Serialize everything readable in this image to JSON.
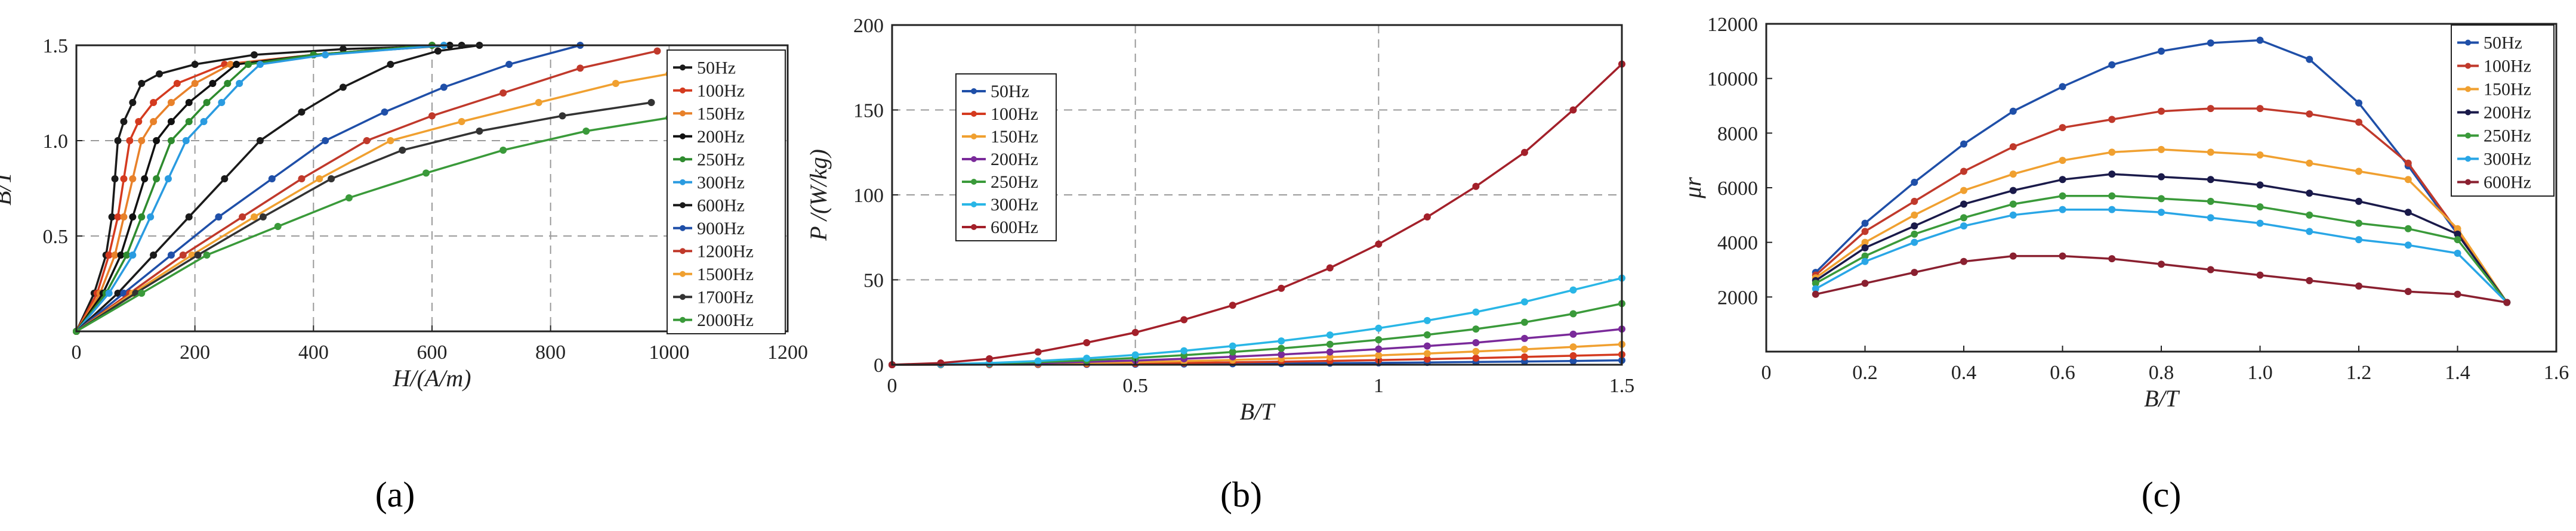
{
  "chart_data": [
    {
      "type": "line",
      "xlabel": "H/(A/m)",
      "ylabel": "B/T",
      "xlim": [
        0,
        1200
      ],
      "ylim": [
        0,
        1.5
      ],
      "xticks": [
        "0",
        "200",
        "400",
        "600",
        "800",
        "1000",
        "1200"
      ],
      "yticks": [
        "0.5",
        "1.0",
        "1.5"
      ],
      "grid": true,
      "legend_position": "right",
      "caption": "(a)",
      "series": [
        {
          "name": "50Hz",
          "color": "#1a1a1a",
          "x": [
            0,
            30,
            50,
            60,
            65,
            70,
            80,
            95,
            110,
            140,
            200,
            300,
            450,
            650
          ],
          "y": [
            0,
            0.2,
            0.4,
            0.6,
            0.8,
            1.0,
            1.1,
            1.2,
            1.3,
            1.35,
            1.4,
            1.45,
            1.48,
            1.5
          ]
        },
        {
          "name": "100Hz",
          "color": "#d43a1f",
          "x": [
            0,
            35,
            55,
            70,
            80,
            90,
            105,
            130,
            170,
            250,
            400,
            600
          ],
          "y": [
            0,
            0.2,
            0.4,
            0.6,
            0.8,
            1.0,
            1.1,
            1.2,
            1.3,
            1.4,
            1.45,
            1.5
          ]
        },
        {
          "name": "150Hz",
          "color": "#e8812a",
          "x": [
            0,
            40,
            65,
            80,
            95,
            110,
            130,
            160,
            200,
            260,
            400,
            600
          ],
          "y": [
            0,
            0.2,
            0.4,
            0.6,
            0.8,
            1.0,
            1.1,
            1.2,
            1.3,
            1.4,
            1.45,
            1.5
          ]
        },
        {
          "name": "200Hz",
          "color": "#111111",
          "x": [
            0,
            45,
            75,
            95,
            115,
            135,
            160,
            190,
            230,
            270,
            400,
            630
          ],
          "y": [
            0,
            0.2,
            0.4,
            0.6,
            0.8,
            1.0,
            1.1,
            1.2,
            1.3,
            1.4,
            1.45,
            1.5
          ]
        },
        {
          "name": "250Hz",
          "color": "#2e8b2e",
          "x": [
            0,
            50,
            85,
            110,
            135,
            160,
            190,
            220,
            255,
            290,
            400,
            600
          ],
          "y": [
            0,
            0.2,
            0.4,
            0.6,
            0.8,
            1.0,
            1.1,
            1.2,
            1.3,
            1.4,
            1.45,
            1.5
          ]
        },
        {
          "name": "300Hz",
          "color": "#2a9be0",
          "x": [
            0,
            55,
            95,
            125,
            155,
            185,
            215,
            245,
            275,
            310,
            420,
            620
          ],
          "y": [
            0,
            0.2,
            0.4,
            0.6,
            0.8,
            1.0,
            1.1,
            1.2,
            1.3,
            1.4,
            1.45,
            1.5
          ]
        },
        {
          "name": "600Hz",
          "color": "#1a1a1a",
          "x": [
            0,
            70,
            130,
            190,
            250,
            310,
            380,
            450,
            530,
            610,
            680
          ],
          "y": [
            0,
            0.2,
            0.4,
            0.6,
            0.8,
            1.0,
            1.15,
            1.28,
            1.4,
            1.47,
            1.5
          ]
        },
        {
          "name": "900Hz",
          "color": "#1f4fa8",
          "x": [
            0,
            80,
            160,
            240,
            330,
            420,
            520,
            620,
            730,
            850
          ],
          "y": [
            0,
            0.2,
            0.4,
            0.6,
            0.8,
            1.0,
            1.15,
            1.28,
            1.4,
            1.5
          ]
        },
        {
          "name": "1200Hz",
          "color": "#c0392b",
          "x": [
            0,
            90,
            180,
            280,
            380,
            490,
            600,
            720,
            850,
            980
          ],
          "y": [
            0,
            0.2,
            0.4,
            0.6,
            0.8,
            1.0,
            1.13,
            1.25,
            1.38,
            1.47
          ]
        },
        {
          "name": "1500Hz",
          "color": "#f0a030",
          "x": [
            0,
            95,
            195,
            300,
            410,
            530,
            650,
            780,
            910,
            1000
          ],
          "y": [
            0,
            0.2,
            0.4,
            0.6,
            0.8,
            1.0,
            1.1,
            1.2,
            1.3,
            1.35
          ]
        },
        {
          "name": "1700Hz",
          "color": "#333333",
          "x": [
            0,
            100,
            205,
            315,
            430,
            550,
            680,
            820,
            970
          ],
          "y": [
            0,
            0.2,
            0.4,
            0.6,
            0.8,
            0.95,
            1.05,
            1.13,
            1.2
          ]
        },
        {
          "name": "2000Hz",
          "color": "#3a9a3a",
          "x": [
            0,
            110,
            220,
            340,
            460,
            590,
            720,
            860,
            1000
          ],
          "y": [
            0,
            0.2,
            0.4,
            0.55,
            0.7,
            0.83,
            0.95,
            1.05,
            1.12
          ]
        }
      ]
    },
    {
      "type": "line",
      "xlabel": "B/T",
      "ylabel": "P /(W/kg)",
      "xlim": [
        0,
        1.5
      ],
      "ylim": [
        0,
        200
      ],
      "xticks": [
        "0",
        "0.5",
        "1",
        "1.5"
      ],
      "yticks": [
        "0",
        "50",
        "100",
        "150",
        "200"
      ],
      "grid": true,
      "legend_position": "top-left",
      "caption": "(b)",
      "x": [
        0,
        0.1,
        0.2,
        0.3,
        0.4,
        0.5,
        0.6,
        0.7,
        0.8,
        0.9,
        1.0,
        1.1,
        1.2,
        1.3,
        1.4,
        1.5
      ],
      "series": [
        {
          "name": "50Hz",
          "color": "#1f4fa8",
          "values": [
            0,
            0.02,
            0.06,
            0.12,
            0.2,
            0.3,
            0.42,
            0.56,
            0.72,
            0.9,
            1.1,
            1.35,
            1.6,
            1.9,
            2.2,
            2.6
          ]
        },
        {
          "name": "100Hz",
          "color": "#d43a1f",
          "values": [
            0,
            0.05,
            0.15,
            0.3,
            0.5,
            0.75,
            1.05,
            1.4,
            1.8,
            2.25,
            2.75,
            3.3,
            3.9,
            4.6,
            5.3,
            6.0
          ]
        },
        {
          "name": "150Hz",
          "color": "#f0a030",
          "values": [
            0,
            0.1,
            0.3,
            0.6,
            1.0,
            1.5,
            2.1,
            2.8,
            3.6,
            4.5,
            5.5,
            6.6,
            7.8,
            9.1,
            10.5,
            12
          ]
        },
        {
          "name": "200Hz",
          "color": "#7a2a9a",
          "values": [
            0,
            0.15,
            0.5,
            1.0,
            1.7,
            2.5,
            3.5,
            4.7,
            6.0,
            7.5,
            9.2,
            11.0,
            13.0,
            15.5,
            18,
            21
          ]
        },
        {
          "name": "250Hz",
          "color": "#3a9a3a",
          "values": [
            0,
            0.2,
            0.7,
            1.5,
            2.6,
            4.0,
            5.6,
            7.5,
            9.6,
            12,
            14.7,
            17.6,
            21,
            25,
            30,
            36
          ]
        },
        {
          "name": "300Hz",
          "color": "#29b6e6",
          "values": [
            0,
            0.3,
            1.0,
            2.2,
            3.8,
            5.8,
            8.2,
            11,
            14,
            17.5,
            21.5,
            26,
            31,
            37,
            44,
            51
          ]
        },
        {
          "name": "600Hz",
          "color": "#a3202a",
          "values": [
            0,
            1.0,
            3.5,
            7.5,
            13,
            19,
            26.5,
            35,
            45,
            57,
            71,
            87,
            105,
            125,
            150,
            177
          ]
        }
      ]
    },
    {
      "type": "line",
      "xlabel": "B/T",
      "ylabel": "μr",
      "xlim": [
        0,
        1.6
      ],
      "ylim": [
        0,
        12000
      ],
      "xticks": [
        "0",
        "0.2",
        "0.4",
        "0.6",
        "0.8",
        "1.0",
        "1.2",
        "1.4",
        "1.6"
      ],
      "yticks": [
        "2000",
        "4000",
        "6000",
        "8000",
        "10000",
        "12000"
      ],
      "grid": false,
      "legend_position": "top-right",
      "caption": "(c)",
      "x": [
        0.1,
        0.2,
        0.3,
        0.4,
        0.5,
        0.6,
        0.7,
        0.8,
        0.9,
        1.0,
        1.1,
        1.2,
        1.3,
        1.4,
        1.5
      ],
      "series": [
        {
          "name": "50Hz",
          "color": "#1f4fa8",
          "values": [
            2900,
            4700,
            6200,
            7600,
            8800,
            9700,
            10500,
            11000,
            11300,
            11400,
            10700,
            9100,
            6800,
            4300,
            1800
          ]
        },
        {
          "name": "100Hz",
          "color": "#c0392b",
          "values": [
            2800,
            4400,
            5500,
            6600,
            7500,
            8200,
            8500,
            8800,
            8900,
            8900,
            8700,
            8400,
            6900,
            4400,
            1800
          ]
        },
        {
          "name": "150Hz",
          "color": "#f0a030",
          "values": [
            2700,
            4000,
            5000,
            5900,
            6500,
            7000,
            7300,
            7400,
            7300,
            7200,
            6900,
            6600,
            6300,
            4500,
            1800
          ]
        },
        {
          "name": "200Hz",
          "color": "#1a1a4a",
          "values": [
            2600,
            3800,
            4600,
            5400,
            5900,
            6300,
            6500,
            6400,
            6300,
            6100,
            5800,
            5500,
            5100,
            4300,
            1800
          ]
        },
        {
          "name": "250Hz",
          "color": "#3a9a3a",
          "values": [
            2500,
            3500,
            4300,
            4900,
            5400,
            5700,
            5700,
            5600,
            5500,
            5300,
            5000,
            4700,
            4500,
            4100,
            1800
          ]
        },
        {
          "name": "300Hz",
          "color": "#29a6e6",
          "values": [
            2300,
            3300,
            4000,
            4600,
            5000,
            5200,
            5200,
            5100,
            4900,
            4700,
            4400,
            4100,
            3900,
            3600,
            1800
          ]
        },
        {
          "name": "600Hz",
          "color": "#8a2030",
          "values": [
            2100,
            2500,
            2900,
            3300,
            3500,
            3500,
            3400,
            3200,
            3000,
            2800,
            2600,
            2400,
            2200,
            2100,
            1800
          ]
        }
      ]
    }
  ]
}
